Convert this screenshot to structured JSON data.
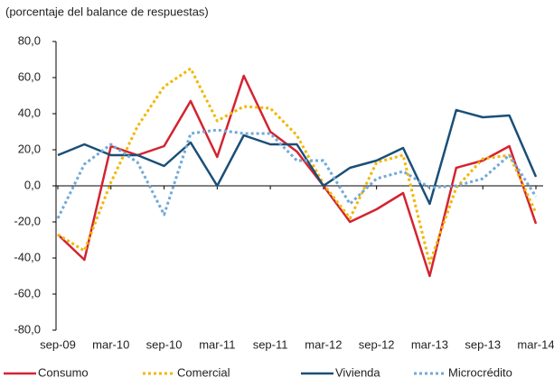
{
  "chart_data": {
    "type": "line",
    "subtitle": "(porcentaje del balance de respuestas)",
    "categories": [
      "sep-09",
      null,
      "mar-10",
      null,
      "sep-10",
      null,
      "mar-11",
      null,
      "sep-11",
      null,
      "mar-12",
      null,
      "sep-12",
      null,
      "mar-13",
      null,
      "sep-13",
      null,
      "mar-14"
    ],
    "ylim": [
      -80,
      80
    ],
    "yticks": [
      {
        "value": -80,
        "label": "-80,0"
      },
      {
        "value": -60,
        "label": "-60,0"
      },
      {
        "value": -40,
        "label": "-40,0"
      },
      {
        "value": -20,
        "label": "-20,0"
      },
      {
        "value": 0,
        "label": "0,0"
      },
      {
        "value": 20,
        "label": "20,0"
      },
      {
        "value": 40,
        "label": "40,0"
      },
      {
        "value": 60,
        "label": "60,0"
      },
      {
        "value": 80,
        "label": "80,0"
      }
    ],
    "grid": false,
    "legend": "bottom",
    "series": [
      {
        "name": "Consumo",
        "color": "#d42330",
        "line_style": "solid",
        "values": [
          -27,
          -41,
          22,
          17,
          22,
          47,
          16,
          61,
          30,
          19,
          0,
          -20,
          -13,
          -4,
          -50,
          10,
          14,
          22,
          -21
        ]
      },
      {
        "name": "Comercial",
        "color": "#f2b705",
        "line_style": "dotted",
        "values": [
          -27,
          -36,
          2,
          33,
          55,
          65,
          36,
          44,
          43,
          28,
          1,
          -18,
          13,
          17,
          -43,
          -1,
          15,
          17,
          -15
        ]
      },
      {
        "name": "Vivienda",
        "color": "#1a4f78",
        "line_style": "solid",
        "values": [
          17,
          23,
          17,
          17,
          11,
          24,
          0,
          28,
          23,
          23,
          0,
          10,
          14,
          21,
          -10,
          42,
          38,
          39,
          5
        ]
      },
      {
        "name": "Microcrédito",
        "color": "#72a9d8",
        "line_style": "dotted",
        "values": [
          -18,
          12,
          23,
          13,
          -16,
          29,
          31,
          29,
          29,
          14,
          14,
          -10,
          4,
          8,
          -1,
          0,
          4,
          17,
          -6
        ]
      }
    ]
  }
}
